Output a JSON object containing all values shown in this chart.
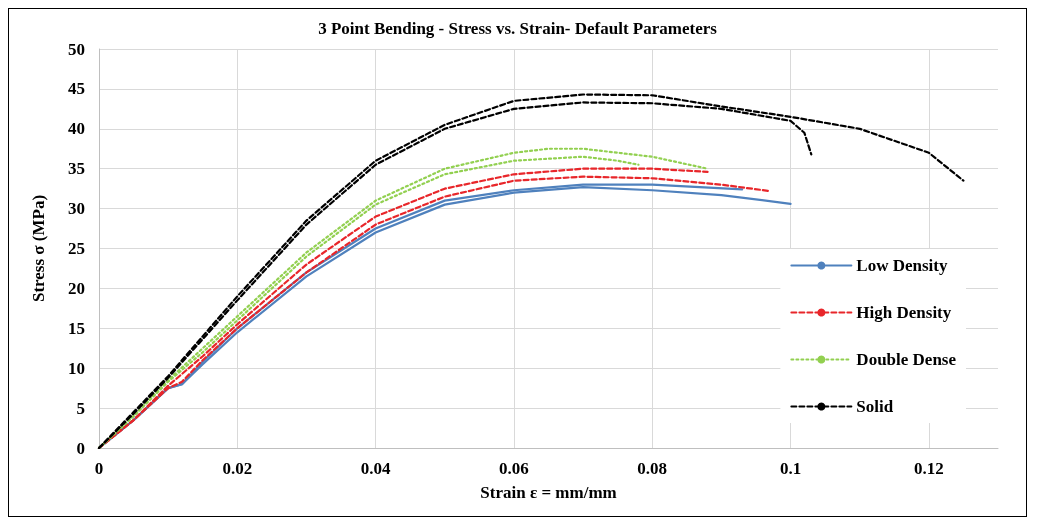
{
  "chart_data": {
    "type": "line",
    "title": "3 Point Bending - Stress vs. Strain- Default Parameters",
    "xlabel": "Strain ε = mm/mm",
    "ylabel": "Stress σ (MPa)",
    "xlim": [
      0,
      0.13
    ],
    "xticks": [
      0,
      0.02,
      0.04,
      0.06,
      0.08,
      0.1,
      0.12
    ],
    "ylim": [
      0,
      50
    ],
    "yticks": [
      0,
      5,
      10,
      15,
      20,
      25,
      30,
      35,
      40,
      45,
      50
    ],
    "grid": true,
    "legend": "right",
    "marker": "none",
    "series": [
      {
        "name": "Low Density",
        "color": "#4f81bd",
        "line_style": "solid",
        "x": [
          0,
          0.005,
          0.01,
          0.012,
          0.015,
          0.02,
          0.03,
          0.04,
          0.05,
          0.06,
          0.07,
          0.08,
          0.09,
          0.1
        ],
        "values": [
          0,
          3.5,
          7.5,
          8,
          10.5,
          14.5,
          21.5,
          27,
          30.5,
          32,
          32.7,
          32.3,
          31.7,
          30.6
        ]
      },
      {
        "color": "#4f81bd",
        "line_style": "solid",
        "x": [
          0,
          0.005,
          0.01,
          0.012,
          0.015,
          0.02,
          0.03,
          0.04,
          0.05,
          0.06,
          0.07,
          0.08,
          0.093
        ],
        "values": [
          0,
          3.5,
          7.5,
          8,
          10.8,
          15,
          22,
          27.5,
          31,
          32.3,
          33,
          33,
          32.4
        ]
      },
      {
        "name": "High Density",
        "color": "#e8262a",
        "line_style": "dashed",
        "x": [
          0,
          0.005,
          0.01,
          0.012,
          0.015,
          0.02,
          0.03,
          0.04,
          0.05,
          0.06,
          0.07,
          0.08,
          0.09,
          0.097
        ],
        "values": [
          0,
          3.5,
          7.5,
          8.3,
          11,
          15,
          22,
          28,
          31.5,
          33.5,
          34,
          33.8,
          33,
          32.2
        ]
      },
      {
        "color": "#e8262a",
        "line_style": "dashed",
        "x": [
          0,
          0.005,
          0.01,
          0.015,
          0.02,
          0.03,
          0.04,
          0.05,
          0.06,
          0.07,
          0.08,
          0.088
        ],
        "values": [
          0,
          3.5,
          7.8,
          11.5,
          15.5,
          23,
          29,
          32.5,
          34.3,
          35,
          35,
          34.6
        ]
      },
      {
        "name": "Double Dense",
        "color": "#92d050",
        "line_style": "dotted",
        "x": [
          0,
          0.005,
          0.01,
          0.015,
          0.02,
          0.03,
          0.04,
          0.05,
          0.06,
          0.065,
          0.07,
          0.08,
          0.088
        ],
        "values": [
          0,
          4,
          8.5,
          12.5,
          16.5,
          24.5,
          31,
          35,
          37,
          37.5,
          37.5,
          36.5,
          35
        ]
      },
      {
        "color": "#92d050",
        "line_style": "dotted",
        "x": [
          0,
          0.005,
          0.01,
          0.015,
          0.02,
          0.03,
          0.04,
          0.05,
          0.06,
          0.07,
          0.075,
          0.078
        ],
        "values": [
          0,
          4,
          8.3,
          12,
          16,
          24,
          30.5,
          34.3,
          36,
          36.5,
          36,
          35.5
        ]
      },
      {
        "name": "Solid",
        "color": "#000000",
        "line_style": "dashed",
        "x": [
          0,
          0.005,
          0.01,
          0.02,
          0.03,
          0.04,
          0.05,
          0.06,
          0.07,
          0.08,
          0.09,
          0.1,
          0.11,
          0.12,
          0.125
        ],
        "values": [
          0,
          4.5,
          9,
          19,
          28.5,
          36,
          40.5,
          43.5,
          44.3,
          44.2,
          42.8,
          41.5,
          40,
          37,
          33.5
        ]
      },
      {
        "color": "#000000",
        "line_style": "dashed",
        "x": [
          0,
          0.005,
          0.01,
          0.02,
          0.03,
          0.04,
          0.05,
          0.06,
          0.07,
          0.08,
          0.09,
          0.1,
          0.102,
          0.103
        ],
        "values": [
          0,
          4.3,
          8.8,
          18.5,
          28,
          35.5,
          40,
          42.5,
          43.3,
          43.2,
          42.5,
          41,
          39.5,
          36.8
        ]
      }
    ]
  }
}
